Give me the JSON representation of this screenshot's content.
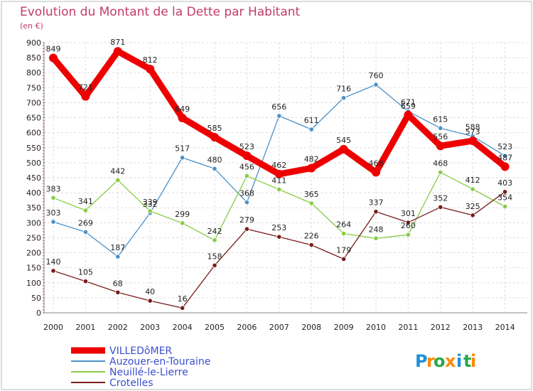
{
  "chart_data": {
    "type": "line",
    "title": "Evolution du Montant de la Dette par Habitant",
    "subtitle": "(en €)",
    "x": [
      "2000",
      "2001",
      "2002",
      "2003",
      "2004",
      "2005",
      "2006",
      "2007",
      "2008",
      "2009",
      "2010",
      "2011",
      "2012",
      "2013",
      "2014"
    ],
    "ylim": [
      0,
      900
    ],
    "yticks": [
      0,
      50,
      100,
      150,
      200,
      250,
      300,
      350,
      400,
      450,
      500,
      550,
      600,
      650,
      700,
      750,
      800,
      850,
      900
    ],
    "grid": true,
    "legend_position": "bottom-left",
    "series": [
      {
        "name": "VILLEDôMER",
        "color": "#ee0000",
        "values": [
          849,
          721,
          871,
          812,
          649,
          585,
          523,
          462,
          482,
          545,
          468,
          659,
          556,
          573,
          487
        ],
        "labels": [
          "849",
          "721",
          "871",
          "812",
          "649",
          "585",
          "523",
          "462",
          "482",
          "545",
          "468",
          "659",
          "556",
          "573",
          "487"
        ]
      },
      {
        "name": "Auzouer-en-Touraine",
        "color": "#4a90c8",
        "values": [
          303,
          269,
          187,
          332,
          517,
          480,
          368,
          656,
          611,
          716,
          760,
          671,
          615,
          588,
          523
        ],
        "labels": [
          "303",
          "269",
          "187",
          "332",
          "517",
          "480",
          "368",
          "656",
          "611",
          "716",
          "760",
          "671",
          "615",
          "588",
          "523"
        ]
      },
      {
        "name": "Neuillé-le-Lierre",
        "color": "#88cc44",
        "values": [
          383,
          341,
          442,
          339,
          299,
          242,
          456,
          411,
          365,
          264,
          248,
          260,
          468,
          412,
          354
        ],
        "labels": [
          "383",
          "341",
          "442",
          "339",
          "299",
          "242",
          "456",
          "411",
          "365",
          "264",
          "248",
          "260",
          "468",
          "412",
          "354"
        ]
      },
      {
        "name": "Crotelles",
        "color": "#7a1c1c",
        "values": [
          140,
          105,
          68,
          40,
          16,
          158,
          279,
          253,
          226,
          179,
          337,
          301,
          352,
          325,
          403
        ],
        "labels": [
          "140",
          "105",
          "68",
          "40",
          "16",
          "158",
          "279",
          "253",
          "226",
          "179",
          "337",
          "301",
          "352",
          "325",
          "403"
        ]
      }
    ]
  },
  "logo": {
    "letters": [
      "P",
      "r",
      "o",
      "x",
      "i",
      "t",
      "i"
    ],
    "colors": [
      "#1e90d8",
      "#ff8a00",
      "#2aa84a",
      "#ff8a00",
      "#1e90d8",
      "#2aa84a",
      "#ff8a00"
    ]
  }
}
